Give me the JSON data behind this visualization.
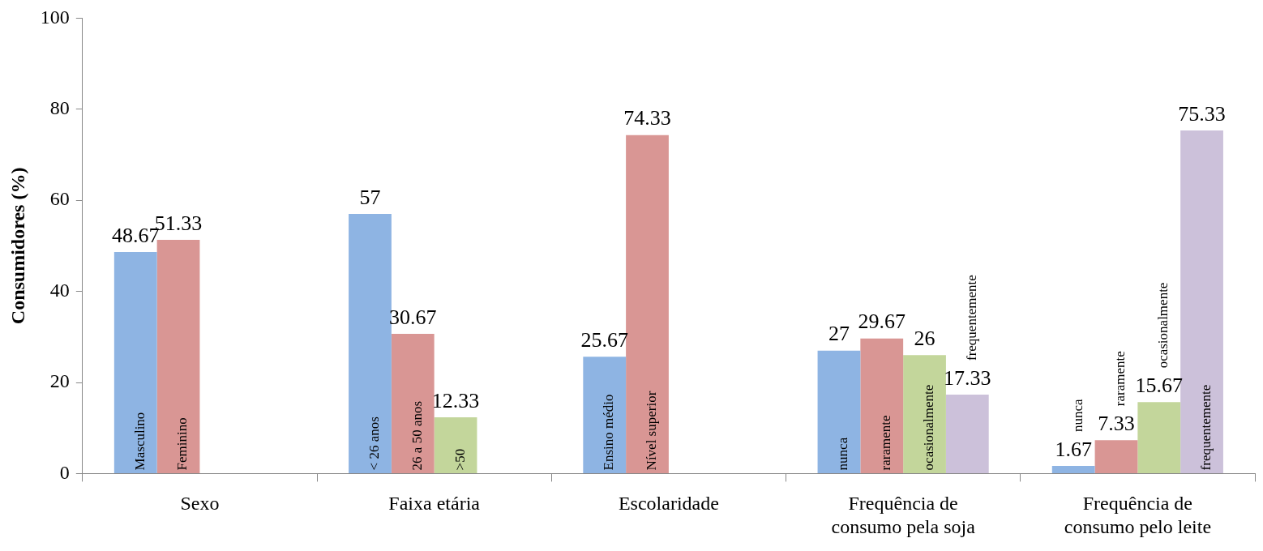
{
  "chart_data": {
    "type": "bar",
    "ylabel": "Consumidores (%)",
    "categories": [
      "Sexo",
      "Faixa etária",
      "Escolaridade",
      "Frequência de consumo pela soja",
      "Frequência de consumo pelo leite"
    ],
    "series": [
      {
        "color": "#8eb4e3",
        "values": [
          48.67,
          57,
          25.67,
          27,
          1.67
        ]
      },
      {
        "color": "#d99694",
        "values": [
          51.33,
          30.67,
          74.33,
          29.67,
          7.33
        ]
      },
      {
        "color": "#c3d69b",
        "values": [
          null,
          12.33,
          null,
          26,
          15.67
        ]
      },
      {
        "color": "#ccc1da",
        "values": [
          null,
          null,
          null,
          17.33,
          75.33
        ]
      }
    ],
    "ylim": [
      0,
      100
    ],
    "yticks": [
      0,
      20,
      40,
      60,
      80,
      100
    ],
    "grid": false,
    "legend": false,
    "data_labels": true,
    "annotations": [
      "Masculino",
      "Feminino",
      "< 26 anos",
      "26 a 50 anos",
      ">50",
      "Ensino médio",
      "Nível superior",
      "nunca",
      "raramente",
      "ocasionalmente",
      "frequentemente",
      "nunca",
      "raramente",
      "ocasionalmente",
      "frequentemente"
    ]
  }
}
